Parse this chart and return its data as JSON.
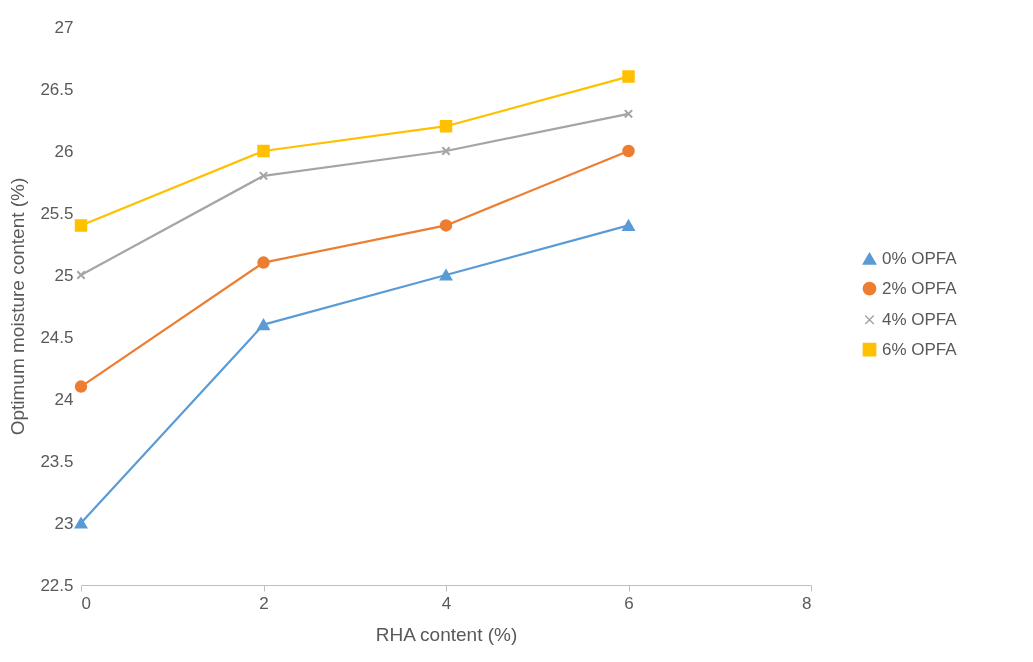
{
  "chart_data": {
    "type": "line",
    "xlabel": "RHA content (%)",
    "ylabel": "Optimum moisture content (%)",
    "x": [
      0,
      2,
      4,
      6
    ],
    "series": [
      {
        "name": "0% OPFA",
        "color": "#5b9bd5",
        "marker": "triangle",
        "values": [
          23,
          24.6,
          25,
          25.4
        ]
      },
      {
        "name": "2% OPFA",
        "color": "#ed7d31",
        "marker": "circle",
        "values": [
          24.1,
          25.1,
          25.4,
          26
        ]
      },
      {
        "name": "4% OPFA",
        "color": "#a5a5a5",
        "marker": "cross",
        "values": [
          25,
          25.8,
          26,
          26.3
        ]
      },
      {
        "name": "6% OPFA",
        "color": "#ffc000",
        "marker": "square",
        "values": [
          25.4,
          26,
          26.2,
          26.6
        ]
      }
    ],
    "xlim": [
      0,
      8
    ],
    "xticks": [
      0,
      2,
      4,
      6,
      8
    ],
    "ylim": [
      22.5,
      27
    ],
    "yticks": [
      22.5,
      23,
      23.5,
      24,
      24.5,
      25,
      25.5,
      26,
      26.5,
      27
    ],
    "grid": false,
    "legend": "right"
  }
}
